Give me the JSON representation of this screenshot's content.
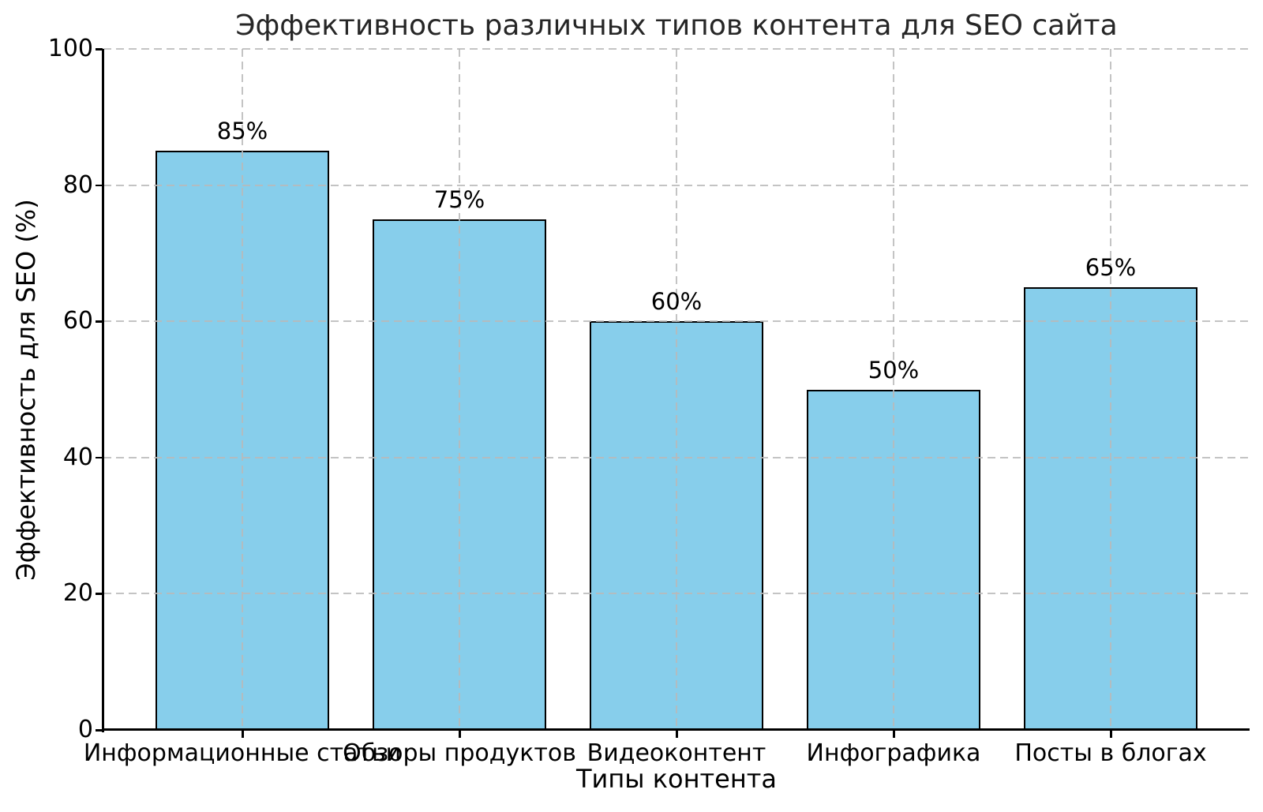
{
  "chart_data": {
    "type": "bar",
    "title": "Эффективность различных типов контента для SEO сайта",
    "xlabel": "Типы контента",
    "ylabel": "Эффективность для SEO (%)",
    "categories": [
      "Информационные статьи",
      "Обзоры продуктов",
      "Видеоконтент",
      "Инфографика",
      "Посты в блогах"
    ],
    "values": [
      85,
      75,
      60,
      50,
      65
    ],
    "bar_value_labels": [
      "85%",
      "75%",
      "60%",
      "50%",
      "65%"
    ],
    "ytick_labels": [
      "0",
      "20",
      "40",
      "60",
      "80",
      "100"
    ],
    "yticks": [
      0,
      20,
      40,
      60,
      80,
      100
    ],
    "ylim": [
      0,
      100
    ],
    "grid": "dashed, horizontal and vertical, drawn over bars",
    "legend_position": "none",
    "colors": {
      "bar_fill": "#87CEEB",
      "bar_edge": "#000000",
      "grid": "#b9b9b9",
      "title_text": "#262626",
      "text": "#000000",
      "background": "#ffffff"
    }
  }
}
